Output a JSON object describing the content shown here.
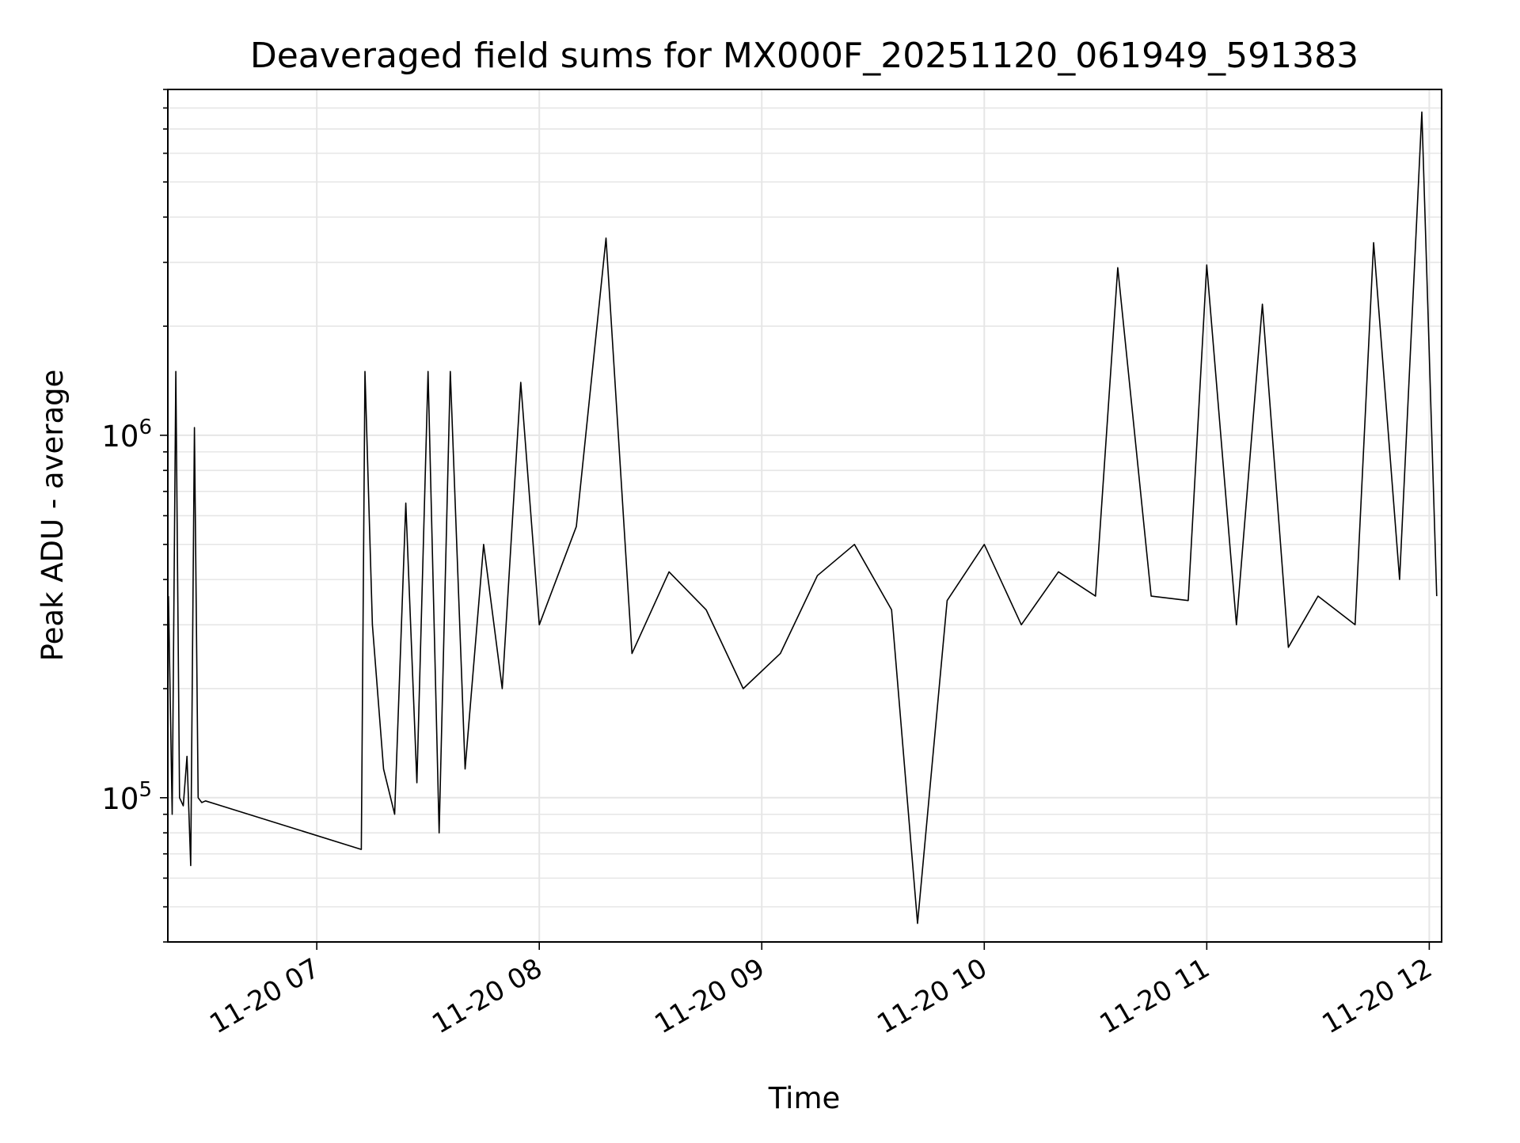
{
  "chart_data": {
    "type": "line",
    "title": "Deaveraged field sums for MX000F_20251120_061949_591383",
    "xlabel": "Time",
    "ylabel": "Peak ADU - average",
    "y_scale": "log",
    "ylim": [
      40000,
      9000000
    ],
    "xlim": [
      "11-20 06:19:50",
      "11-20 12:03:20"
    ],
    "x_ticks": [
      "11-20 07",
      "11-20 08",
      "11-20 09",
      "11-20 10",
      "11-20 11",
      "11-20 12"
    ],
    "x_tick_times": [
      "11-20 07:00",
      "11-20 08:00",
      "11-20 09:00",
      "11-20 10:00",
      "11-20 11:00",
      "11-20 12:00"
    ],
    "y_ticks": [
      {
        "base": "10",
        "exp": "5",
        "value": 100000
      },
      {
        "base": "10",
        "exp": "6",
        "value": 1000000
      }
    ],
    "grid": true,
    "line_color": "#000000",
    "series": [
      {
        "x": [
          "11-20 06:20",
          "11-20 06:21",
          "11-20 06:22",
          "11-20 06:23",
          "11-20 06:24",
          "11-20 06:25",
          "11-20 06:26",
          "11-20 06:27",
          "11-20 06:28",
          "11-20 06:29",
          "11-20 06:30",
          "11-20 07:12",
          "11-20 07:13",
          "11-20 07:15",
          "11-20 07:18",
          "11-20 07:21",
          "11-20 07:24",
          "11-20 07:27",
          "11-20 07:30",
          "11-20 07:33",
          "11-20 07:36",
          "11-20 07:40",
          "11-20 07:45",
          "11-20 07:50",
          "11-20 07:55",
          "11-20 08:00",
          "11-20 08:10",
          "11-20 08:18",
          "11-20 08:25",
          "11-20 08:35",
          "11-20 08:45",
          "11-20 08:55",
          "11-20 09:05",
          "11-20 09:15",
          "11-20 09:25",
          "11-20 09:35",
          "11-20 09:42",
          "11-20 09:50",
          "11-20 10:00",
          "11-20 10:10",
          "11-20 10:20",
          "11-20 10:30",
          "11-20 10:36",
          "11-20 10:45",
          "11-20 10:55",
          "11-20 11:00",
          "11-20 11:08",
          "11-20 11:15",
          "11-20 11:22",
          "11-20 11:30",
          "11-20 11:40",
          "11-20 11:45",
          "11-20 11:52",
          "11-20 11:58",
          "11-20 12:02"
        ],
        "y": [
          360000,
          90000,
          1500000,
          100000,
          95000,
          130000,
          65000,
          1050000,
          100000,
          97000,
          98000,
          72000,
          1500000,
          300000,
          120000,
          90000,
          650000,
          110000,
          1500000,
          80000,
          1500000,
          120000,
          500000,
          200000,
          1400000,
          300000,
          560000,
          3500000,
          250000,
          420000,
          330000,
          200000,
          250000,
          410000,
          500000,
          330000,
          45000,
          350000,
          500000,
          300000,
          420000,
          360000,
          2900000,
          360000,
          350000,
          2950000,
          300000,
          2300000,
          260000,
          360000,
          300000,
          3400000,
          400000,
          7800000,
          360000
        ]
      }
    ]
  }
}
